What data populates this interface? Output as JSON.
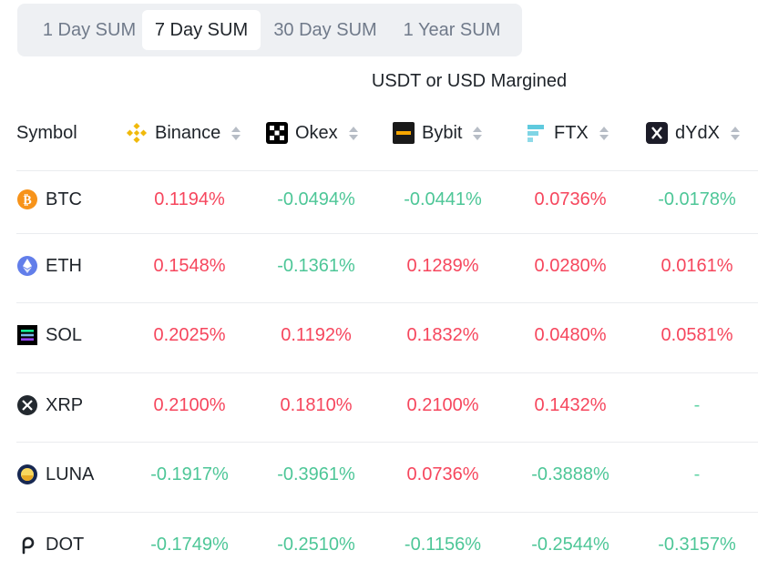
{
  "tabs": [
    {
      "label": "1 Day SUM",
      "active": false
    },
    {
      "label": "7 Day SUM",
      "active": true
    },
    {
      "label": "30 Day SUM",
      "active": false
    },
    {
      "label": "1 Year SUM",
      "active": false
    }
  ],
  "group_title": "USDT or USD Margined",
  "columns": {
    "symbol": "Symbol",
    "exchanges": [
      {
        "name": "Binance",
        "icon": "binance-icon"
      },
      {
        "name": "Okex",
        "icon": "okex-icon"
      },
      {
        "name": "Bybit",
        "icon": "bybit-icon"
      },
      {
        "name": "FTX",
        "icon": "ftx-icon"
      },
      {
        "name": "dYdX",
        "icon": "dydx-icon"
      }
    ]
  },
  "rows": [
    {
      "symbol": "BTC",
      "icon": "bitcoin-icon",
      "values": [
        "0.1194%",
        "-0.0494%",
        "-0.0441%",
        "0.0736%",
        "-0.0178%"
      ]
    },
    {
      "symbol": "ETH",
      "icon": "ethereum-icon",
      "values": [
        "0.1548%",
        "-0.1361%",
        "0.1289%",
        "0.0280%",
        "0.0161%"
      ]
    },
    {
      "symbol": "SOL",
      "icon": "solana-icon",
      "values": [
        "0.2025%",
        "0.1192%",
        "0.1832%",
        "0.0480%",
        "0.0581%"
      ]
    },
    {
      "symbol": "XRP",
      "icon": "xrp-icon",
      "values": [
        "0.2100%",
        "0.1810%",
        "0.2100%",
        "0.1432%",
        "-"
      ]
    },
    {
      "symbol": "LUNA",
      "icon": "luna-icon",
      "values": [
        "-0.1917%",
        "-0.3961%",
        "0.0736%",
        "-0.3888%",
        "-"
      ]
    },
    {
      "symbol": "DOT",
      "icon": "polkadot-icon",
      "values": [
        "-0.1749%",
        "-0.2510%",
        "-0.1156%",
        "-0.2544%",
        "-0.3157%"
      ]
    }
  ],
  "colors": {
    "positive": "#f6465d",
    "negative": "#2ebd85",
    "binance": "#f0b90b",
    "ftx": "#5fcade"
  }
}
